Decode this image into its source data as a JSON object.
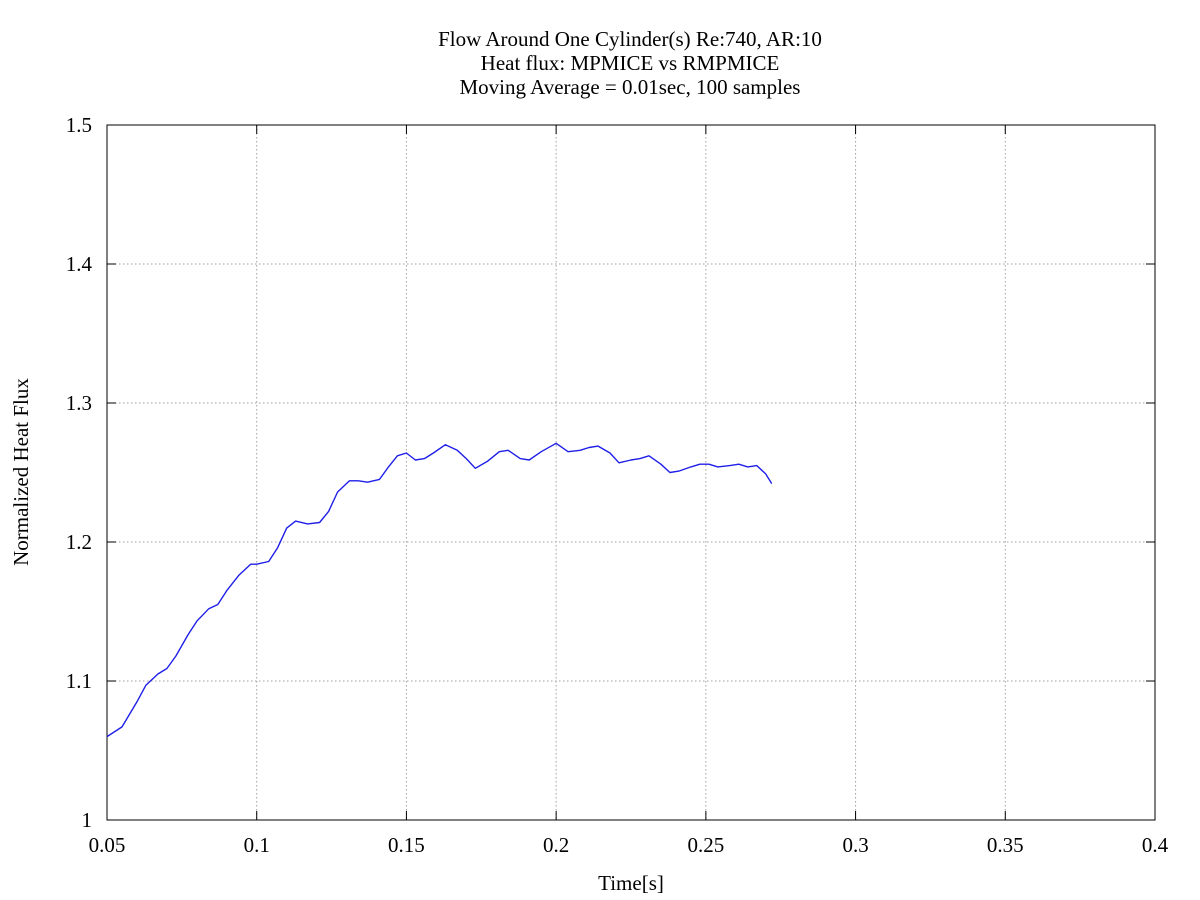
{
  "chart_data": {
    "type": "line",
    "title_lines": [
      "Flow Around One Cylinder(s) Re:740, AR:10",
      "Heat flux: MPMICE vs RMPMICE",
      "Moving Average = 0.01sec, 100 samples"
    ],
    "xlabel": "Time[s]",
    "ylabel": "Normalized Heat Flux",
    "xlim": [
      0.05,
      0.4
    ],
    "ylim": [
      1,
      1.5
    ],
    "x_ticks": [
      0.05,
      0.1,
      0.15,
      0.2,
      0.25,
      0.3,
      0.35,
      0.4
    ],
    "x_tick_labels": [
      "0.05",
      "0.1",
      "0.15",
      "0.2",
      "0.25",
      "0.3",
      "0.35",
      "0.4"
    ],
    "y_ticks": [
      1,
      1.1,
      1.2,
      1.3,
      1.4,
      1.5
    ],
    "y_tick_labels": [
      "1",
      "1.1",
      "1.2",
      "1.3",
      "1.4",
      "1.5"
    ],
    "grid": true,
    "legend": "none",
    "series": [
      {
        "color": "#1f1fe8",
        "x": [
          0.05,
          0.055,
          0.06,
          0.063,
          0.067,
          0.07,
          0.073,
          0.077,
          0.08,
          0.084,
          0.087,
          0.09,
          0.094,
          0.098,
          0.1,
          0.104,
          0.107,
          0.11,
          0.113,
          0.117,
          0.121,
          0.124,
          0.127,
          0.131,
          0.134,
          0.137,
          0.141,
          0.144,
          0.147,
          0.15,
          0.153,
          0.156,
          0.159,
          0.163,
          0.167,
          0.17,
          0.173,
          0.177,
          0.181,
          0.184,
          0.188,
          0.191,
          0.195,
          0.2,
          0.204,
          0.208,
          0.211,
          0.214,
          0.218,
          0.221,
          0.225,
          0.228,
          0.231,
          0.235,
          0.238,
          0.241,
          0.245,
          0.248,
          0.251,
          0.254,
          0.258,
          0.261,
          0.264,
          0.267,
          0.27,
          0.272
        ],
        "y": [
          1.06,
          1.067,
          1.085,
          1.097,
          1.105,
          1.109,
          1.118,
          1.133,
          1.143,
          1.152,
          1.155,
          1.165,
          1.176,
          1.184,
          1.184,
          1.186,
          1.196,
          1.21,
          1.215,
          1.213,
          1.214,
          1.222,
          1.236,
          1.244,
          1.244,
          1.243,
          1.245,
          1.254,
          1.262,
          1.264,
          1.259,
          1.26,
          1.264,
          1.27,
          1.266,
          1.26,
          1.253,
          1.258,
          1.265,
          1.266,
          1.26,
          1.259,
          1.265,
          1.271,
          1.265,
          1.266,
          1.268,
          1.269,
          1.264,
          1.257,
          1.259,
          1.26,
          1.262,
          1.256,
          1.25,
          1.251,
          1.254,
          1.256,
          1.256,
          1.254,
          1.255,
          1.256,
          1.254,
          1.255,
          1.249,
          1.242
        ]
      }
    ]
  }
}
